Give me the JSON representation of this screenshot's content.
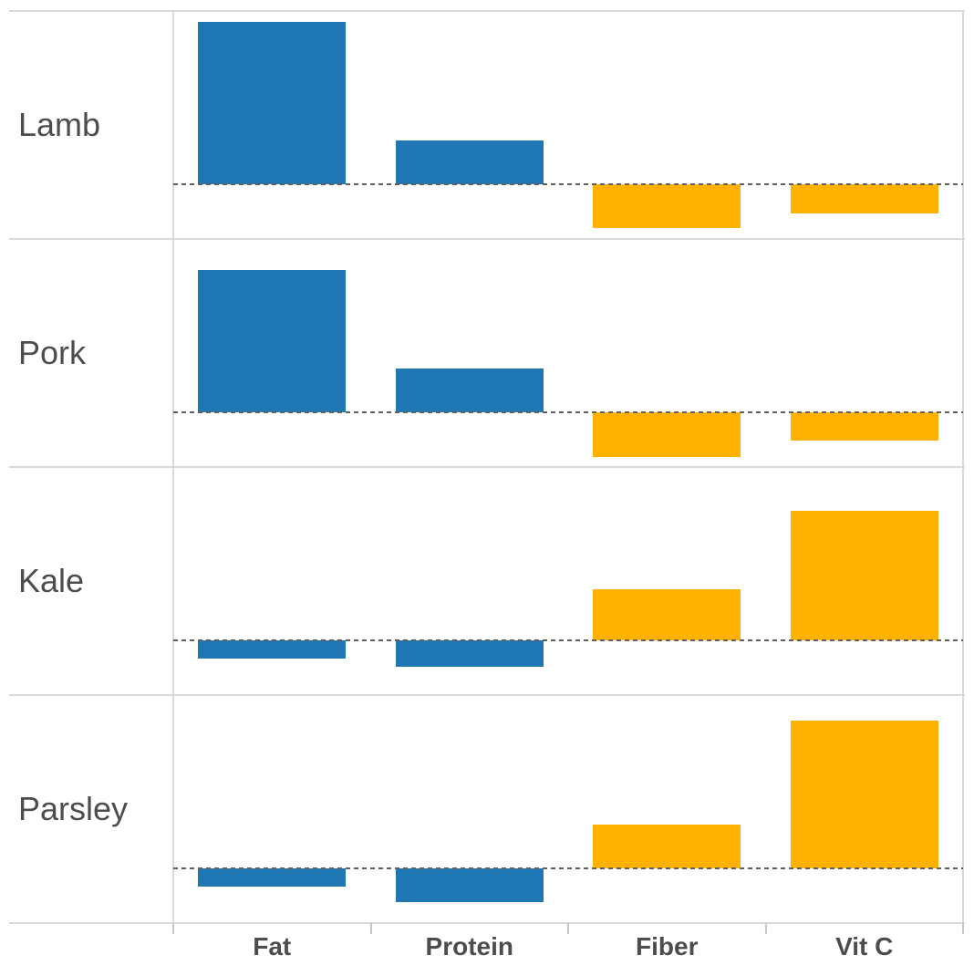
{
  "chart_data": {
    "type": "bar",
    "variant": "small-multiples diverging bar panels, one row per food, dashed zero baseline per row, no numeric axis shown",
    "title": "",
    "categories": [
      "Fat",
      "Protein",
      "Fiber",
      "Vit C"
    ],
    "series": [
      {
        "name": "Lamb",
        "values": [
          178,
          48,
          -48,
          -32
        ]
      },
      {
        "name": "Pork",
        "values": [
          156,
          48,
          -49,
          -31
        ]
      },
      {
        "name": "Kale",
        "values": [
          -20,
          -29,
          56,
          142
        ]
      },
      {
        "name": "Parsley",
        "values": [
          -20,
          -37,
          48,
          162
        ]
      }
    ],
    "value_units": "relative magnitude measured in pixels above (+) / below (-) the dashed baseline; chart displays no numeric tick labels",
    "baseline_value": 0,
    "legend": "none",
    "grid": "light row separator lines and panel frame only",
    "category_colors": {
      "Fat": "#1f77b4",
      "Protein": "#1f77b4",
      "Fiber": "#ffb100",
      "Vit C": "#ffb100"
    }
  },
  "colors": {
    "blue_bar": "#1f77b4",
    "orange_bar": "#ffb100",
    "label_text": "#4d4d4d",
    "frame_line": "#d9d9d9",
    "axis_tick": "#c6c6c6",
    "baseline_dash": "#5f5f5f",
    "background": "#ffffff"
  }
}
